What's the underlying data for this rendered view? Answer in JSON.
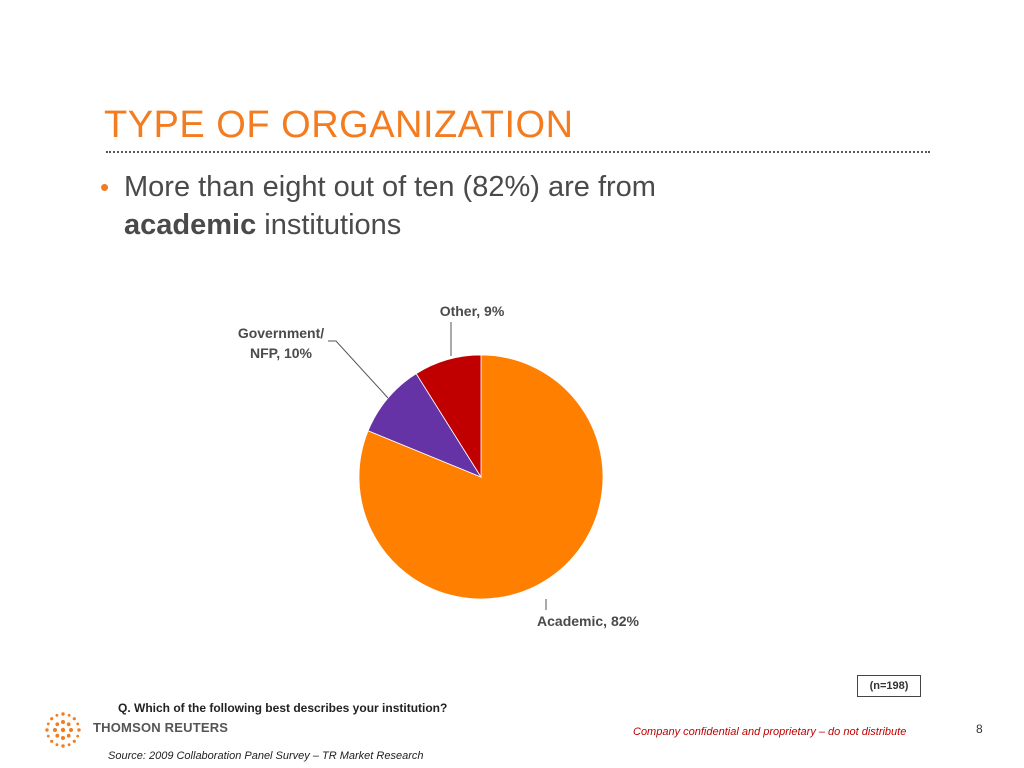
{
  "slide": {
    "title": "TYPE OF ORGANIZATION",
    "bullet": {
      "part1": "More than eight out of ten (82%) are from",
      "bold": "academic",
      "part2": " institutions"
    },
    "sample_size": "(n=198)",
    "question": "Q.  Which of the following best describes your institution?",
    "brand": "THOMSON REUTERS",
    "confidential": "Company confidential and proprietary – do not distribute",
    "page_number": "8",
    "source": "Source:  2009 Collaboration Panel Survey – TR Market Research"
  },
  "colors": {
    "accent": "#f47c20",
    "academic": "#ff7f00",
    "government": "#6633a6",
    "other": "#c00000"
  },
  "chart_data": {
    "type": "pie",
    "slices": [
      {
        "label": "Academic, 82%",
        "value": 82,
        "color": "#ff7f00"
      },
      {
        "label": "Government/ NFP, 10%",
        "value": 10,
        "color": "#6633a6"
      },
      {
        "label": "Other, 9%",
        "value": 9,
        "color": "#c00000"
      }
    ]
  }
}
